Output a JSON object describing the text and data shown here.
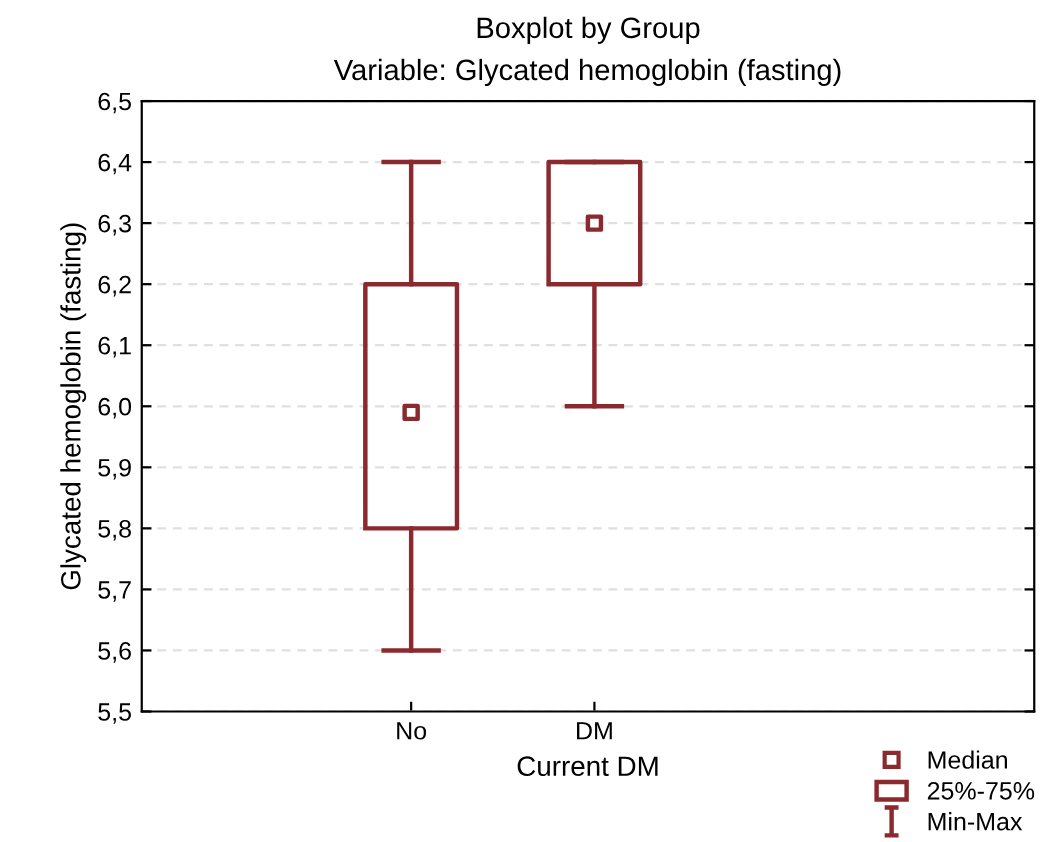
{
  "chart_data": {
    "type": "box",
    "title": "Boxplot by Group",
    "subtitle": "Variable: Glycated hemoglobin (fasting)",
    "xlabel": "Current DM",
    "ylabel": "Glycated hemoglobin (fasting)",
    "categories": [
      "No",
      "DM"
    ],
    "series": [
      {
        "name": "25%-75%",
        "color": "#8b2a2e",
        "boxes": [
          {
            "low": 5.6,
            "q1": 5.8,
            "median": 5.99,
            "q3": 6.2,
            "high": 6.4
          },
          {
            "low": 6.0,
            "q1": 6.2,
            "median": 6.3,
            "q3": 6.4,
            "high": 6.4
          }
        ]
      }
    ],
    "annotations": [
      "Median",
      "Min-Max"
    ],
    "ylim": [
      5.5,
      6.5
    ],
    "yticks": [
      {
        "value": 5.5,
        "label": "5,5"
      },
      {
        "value": 5.6,
        "label": "5,6"
      },
      {
        "value": 5.7,
        "label": "5,7"
      },
      {
        "value": 5.8,
        "label": "5,8"
      },
      {
        "value": 5.9,
        "label": "5,9"
      },
      {
        "value": 6.0,
        "label": "6,0"
      },
      {
        "value": 6.1,
        "label": "6,1"
      },
      {
        "value": 6.2,
        "label": "6,2"
      },
      {
        "value": 6.3,
        "label": "6,3"
      },
      {
        "value": 6.4,
        "label": "6,4"
      },
      {
        "value": 6.5,
        "label": "6,5"
      }
    ],
    "grid": "y",
    "legend": "bottom right",
    "marker": "square"
  }
}
